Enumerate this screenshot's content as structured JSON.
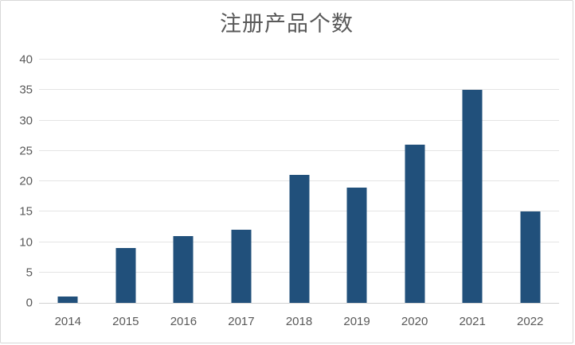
{
  "frame": {
    "background": "#ffffff",
    "border_color": "#d8d8d8"
  },
  "chart_data": {
    "type": "bar",
    "title": "注册产品个数",
    "categories": [
      "2014",
      "2015",
      "2016",
      "2017",
      "2018",
      "2019",
      "2020",
      "2021",
      "2022"
    ],
    "values": [
      1,
      9,
      11,
      12,
      21,
      19,
      26,
      35,
      15
    ],
    "xlabel": "",
    "ylabel": "",
    "ylim": [
      0,
      40
    ],
    "yticks": [
      0,
      5,
      10,
      15,
      20,
      25,
      30,
      35,
      40
    ],
    "grid": true,
    "legend": false,
    "bar_color": "#21507b",
    "gridline_color": "#e4e4e4",
    "axis_line_color": "#d2d2d2",
    "text_color": "#595959",
    "title_color": "#595959"
  }
}
